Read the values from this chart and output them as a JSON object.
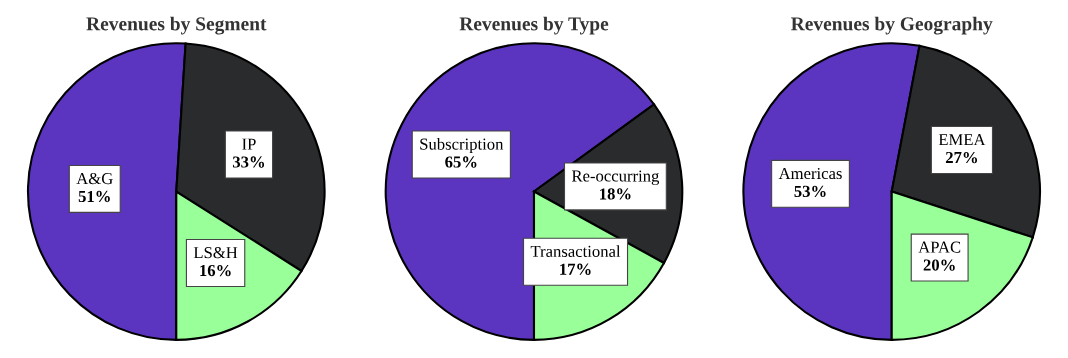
{
  "chart_data": [
    {
      "type": "pie",
      "title": "Revenues by Segment",
      "categories": [
        "A&G",
        "IP",
        "LS&H"
      ],
      "values": [
        51,
        33,
        16
      ],
      "value_labels": [
        "51%",
        "33%",
        "16%"
      ],
      "colors": [
        "#5b34c0",
        "#2a2b2d",
        "#99ff99"
      ]
    },
    {
      "type": "pie",
      "title": "Revenues by Type",
      "categories": [
        "Subscription",
        "Re-occurring",
        "Transactional"
      ],
      "values": [
        65,
        18,
        17
      ],
      "value_labels": [
        "65%",
        "18%",
        "17%"
      ],
      "colors": [
        "#5b34c0",
        "#2a2b2d",
        "#99ff99"
      ]
    },
    {
      "type": "pie",
      "title": "Revenues by Geography",
      "categories": [
        "Americas",
        "EMEA",
        "APAC"
      ],
      "values": [
        53,
        27,
        20
      ],
      "value_labels": [
        "53%",
        "27%",
        "20%"
      ],
      "colors": [
        "#5b34c0",
        "#2a2b2d",
        "#99ff99"
      ]
    }
  ]
}
